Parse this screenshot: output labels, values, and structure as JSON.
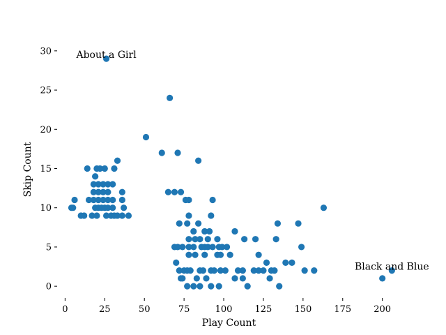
{
  "chart_data": {
    "type": "scatter",
    "xlabel": "Play Count",
    "ylabel": "Skip Count",
    "xlim": [
      -5,
      212
    ],
    "ylim": [
      -1.5,
      31.5
    ],
    "xticks": [
      0,
      25,
      50,
      75,
      100,
      125,
      150,
      175,
      200
    ],
    "yticks": [
      0,
      5,
      10,
      15,
      20,
      25,
      30
    ],
    "grid": false,
    "marker_color": "#1f77b4",
    "points": [
      [
        26,
        29
      ],
      [
        66,
        24
      ],
      [
        51,
        19
      ],
      [
        61,
        17
      ],
      [
        71,
        17
      ],
      [
        84,
        16
      ],
      [
        33,
        16
      ],
      [
        163,
        10
      ],
      [
        14,
        15
      ],
      [
        20,
        15
      ],
      [
        25,
        15
      ],
      [
        31,
        15
      ],
      [
        22,
        15
      ],
      [
        19,
        14
      ],
      [
        18,
        13
      ],
      [
        21,
        13
      ],
      [
        24,
        13
      ],
      [
        27,
        13
      ],
      [
        30,
        13
      ],
      [
        18,
        12
      ],
      [
        21,
        12
      ],
      [
        24,
        12
      ],
      [
        27,
        12
      ],
      [
        36,
        12
      ],
      [
        65,
        12
      ],
      [
        69,
        12
      ],
      [
        73,
        12
      ],
      [
        15,
        11
      ],
      [
        18,
        11
      ],
      [
        21,
        11
      ],
      [
        24,
        11
      ],
      [
        27,
        11
      ],
      [
        30,
        11
      ],
      [
        36,
        11
      ],
      [
        6,
        11
      ],
      [
        76,
        11
      ],
      [
        78,
        11
      ],
      [
        93,
        11
      ],
      [
        4,
        10
      ],
      [
        5,
        10
      ],
      [
        19,
        10
      ],
      [
        21,
        10
      ],
      [
        23,
        10
      ],
      [
        25,
        10
      ],
      [
        27,
        10
      ],
      [
        30,
        10
      ],
      [
        37,
        10
      ],
      [
        10,
        9
      ],
      [
        12,
        9
      ],
      [
        17,
        9
      ],
      [
        20,
        9
      ],
      [
        26,
        9
      ],
      [
        29,
        9
      ],
      [
        31,
        9
      ],
      [
        33,
        9
      ],
      [
        36,
        9
      ],
      [
        40,
        9
      ],
      [
        78,
        9
      ],
      [
        92,
        9
      ],
      [
        72,
        8
      ],
      [
        77,
        8
      ],
      [
        84,
        8
      ],
      [
        134,
        8
      ],
      [
        147,
        8
      ],
      [
        81,
        7
      ],
      [
        88,
        7
      ],
      [
        91,
        7
      ],
      [
        107,
        7
      ],
      [
        78,
        6
      ],
      [
        82,
        6
      ],
      [
        85,
        6
      ],
      [
        90,
        6
      ],
      [
        96,
        6
      ],
      [
        113,
        6
      ],
      [
        120,
        6
      ],
      [
        133,
        6
      ],
      [
        69,
        5
      ],
      [
        71,
        5
      ],
      [
        74,
        5
      ],
      [
        78,
        5
      ],
      [
        81,
        5
      ],
      [
        86,
        5
      ],
      [
        88,
        5
      ],
      [
        90,
        5
      ],
      [
        93,
        5
      ],
      [
        97,
        5
      ],
      [
        99,
        5
      ],
      [
        102,
        5
      ],
      [
        149,
        5
      ],
      [
        78,
        4
      ],
      [
        82,
        4
      ],
      [
        88,
        4
      ],
      [
        96,
        4
      ],
      [
        98,
        4
      ],
      [
        104,
        4
      ],
      [
        122,
        4
      ],
      [
        70,
        3
      ],
      [
        127,
        3
      ],
      [
        139,
        3
      ],
      [
        143,
        3
      ],
      [
        72,
        2
      ],
      [
        75,
        2
      ],
      [
        77,
        2
      ],
      [
        79,
        2
      ],
      [
        85,
        2
      ],
      [
        87,
        2
      ],
      [
        92,
        2
      ],
      [
        94,
        2
      ],
      [
        98,
        2
      ],
      [
        101,
        2
      ],
      [
        109,
        2
      ],
      [
        112,
        2
      ],
      [
        119,
        2
      ],
      [
        122,
        2
      ],
      [
        125,
        2
      ],
      [
        130,
        2
      ],
      [
        132,
        2
      ],
      [
        151,
        2
      ],
      [
        157,
        2
      ],
      [
        206,
        2
      ],
      [
        73,
        1
      ],
      [
        74,
        1
      ],
      [
        83,
        1
      ],
      [
        89,
        1
      ],
      [
        107,
        1
      ],
      [
        112,
        1
      ],
      [
        129,
        1
      ],
      [
        200,
        1
      ],
      [
        77,
        0
      ],
      [
        81,
        0
      ],
      [
        85,
        0
      ],
      [
        92,
        0
      ],
      [
        97,
        0
      ],
      [
        115,
        0
      ],
      [
        135,
        0
      ]
    ],
    "annotations": [
      {
        "text": "About a Girl",
        "x": 26,
        "y": 29
      },
      {
        "text": "Black and Blue",
        "x": 206,
        "y": 2
      }
    ]
  }
}
